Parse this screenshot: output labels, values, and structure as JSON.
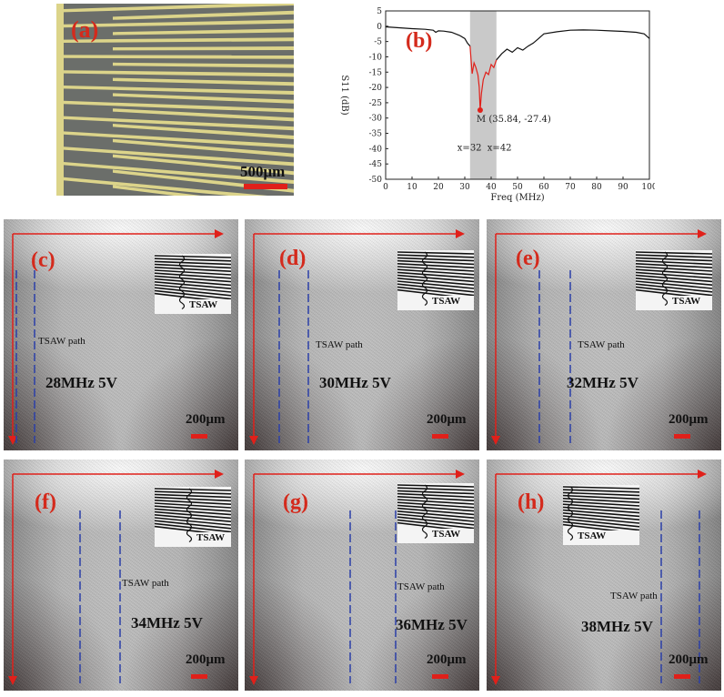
{
  "panel_a": {
    "label": "(a)",
    "scale_text": "500μm",
    "colors": {
      "electrode": "#dcd48a",
      "substrate": "#6b6e6a",
      "scalebar": "#e0201a"
    }
  },
  "panel_b": {
    "label": "(b)",
    "marker_text": "M (35.84, -27.4)",
    "band_labels": [
      "x=32",
      "x=42"
    ]
  },
  "chart_data": {
    "type": "line",
    "xlabel": "Freq (MHz)",
    "ylabel": "S11 (dB)",
    "xlim": [
      0,
      100
    ],
    "ylim": [
      -50,
      5
    ],
    "xticks": [
      0,
      10,
      20,
      30,
      40,
      50,
      60,
      70,
      80,
      90,
      100
    ],
    "yticks": [
      5,
      0,
      -5,
      -10,
      -15,
      -20,
      -25,
      -30,
      -35,
      -40,
      -45,
      -50
    ],
    "highlight_band": [
      32,
      42
    ],
    "marker": {
      "x": 35.84,
      "y": -27.4
    },
    "series": [
      {
        "color": "#111111",
        "x": [
          0,
          5,
          10,
          15,
          18,
          19,
          20,
          22,
          25,
          28,
          30,
          31,
          32
        ],
        "y": [
          -0.2,
          -0.5,
          -0.8,
          -1.0,
          -1.3,
          -2.0,
          -1.5,
          -1.6,
          -2.0,
          -3.0,
          -4.0,
          -5.5,
          -6.5
        ]
      },
      {
        "color": "#e0201a",
        "x": [
          32,
          32.8,
          33.5,
          34.2,
          35,
          35.5,
          35.84,
          36.3,
          37,
          38,
          39,
          40,
          41,
          42
        ],
        "y": [
          -6.5,
          -15.5,
          -12.0,
          -13.5,
          -16.0,
          -20.0,
          -27.4,
          -22.0,
          -17.5,
          -15.0,
          -15.8,
          -12.5,
          -13.5,
          -11.0
        ]
      },
      {
        "color": "#111111",
        "x": [
          42,
          44,
          46,
          48,
          50,
          52,
          54,
          56,
          58,
          60,
          65,
          70,
          75,
          80,
          85,
          90,
          95,
          98,
          100
        ],
        "y": [
          -11.0,
          -9.0,
          -7.5,
          -8.5,
          -7.0,
          -7.8,
          -6.5,
          -5.5,
          -4.0,
          -2.5,
          -1.8,
          -1.3,
          -1.2,
          -1.3,
          -1.5,
          -1.7,
          -2.0,
          -2.5,
          -4.0
        ]
      }
    ]
  },
  "micro_panels": [
    {
      "label": "(c)",
      "freq": "28MHz 5V",
      "path": "TSAW path",
      "scale": "200μm",
      "inset_text": "TSAW"
    },
    {
      "label": "(d)",
      "freq": "30MHz 5V",
      "path": "TSAW path",
      "scale": "200μm",
      "inset_text": "TSAW"
    },
    {
      "label": "(e)",
      "freq": "32MHz 5V",
      "path": "TSAW path",
      "scale": "200μm",
      "inset_text": "TSAW"
    },
    {
      "label": "(f)",
      "freq": "34MHz 5V",
      "path": "TSAW path",
      "scale": "200μm",
      "inset_text": "TSAW"
    },
    {
      "label": "(g)",
      "freq": "36MHz 5V",
      "path": "TSAW path",
      "scale": "200μm",
      "inset_text": "TSAW"
    },
    {
      "label": "(h)",
      "freq": "38MHz 5V",
      "path": "TSAW path",
      "scale": "200μm",
      "inset_text": "TSAW"
    }
  ]
}
